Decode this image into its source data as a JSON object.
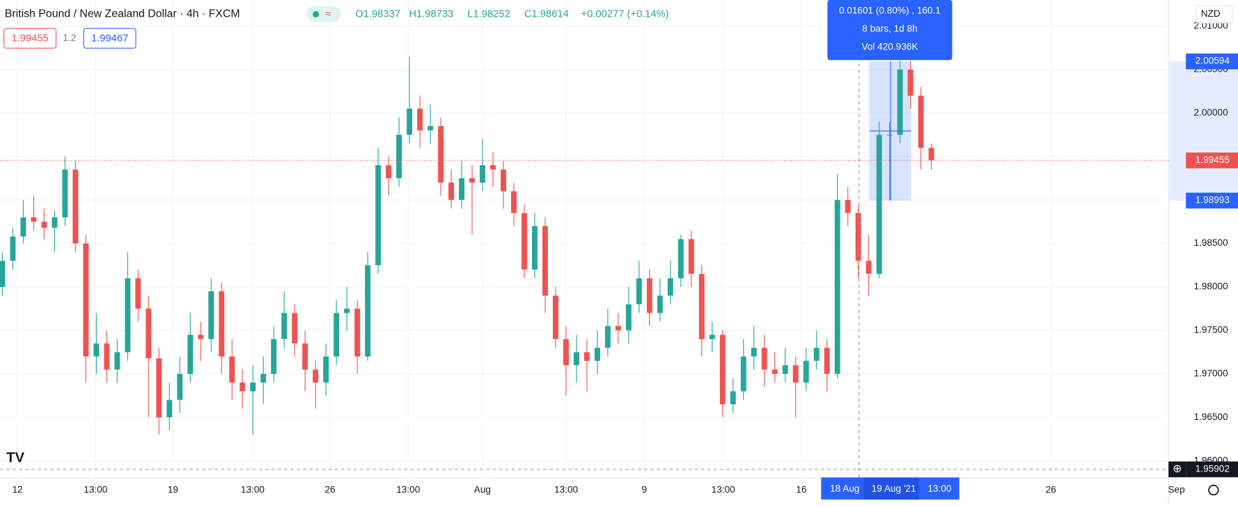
{
  "chart_data": {
    "type": "candlestick",
    "title": "British Pound / New Zealand Dollar · 4h · FXCM",
    "ohlc_header": [
      "O1.98337",
      "H1.98733",
      "L1.98252",
      "C1.98614",
      "+0.00277 (+0.14%)"
    ],
    "sell_price": "1.99455",
    "spread": "1.2",
    "buy_price": "1.99467",
    "currency": "NZD",
    "up_color": "#26a69a",
    "down_color": "#ef5350",
    "grid": true,
    "ylim": [
      1.958,
      2.013
    ],
    "yticks": [
      {
        "value": 1.96,
        "label": "1.96000"
      },
      {
        "value": 1.965,
        "label": "1.96500"
      },
      {
        "value": 1.97,
        "label": "1.97000"
      },
      {
        "value": 1.975,
        "label": "1.97500"
      },
      {
        "value": 1.98,
        "label": "1.98000"
      },
      {
        "value": 1.985,
        "label": "1.98500"
      },
      {
        "value": 1.99,
        "label": "1.99000"
      },
      {
        "value": 1.995,
        "label": "1.99500"
      },
      {
        "value": 2.0,
        "label": "2.00000"
      },
      {
        "value": 2.005,
        "label": "2.00500"
      },
      {
        "value": 2.01,
        "label": "2.01000"
      }
    ],
    "xlim": [
      -0.23,
      111.57
    ],
    "xticks": [
      {
        "value": 1.44,
        "label": "12"
      },
      {
        "value": 8.93,
        "label": "13:00"
      },
      {
        "value": 16.34,
        "label": "19"
      },
      {
        "value": 23.98,
        "label": "13:00"
      },
      {
        "value": 31.39,
        "label": "26"
      },
      {
        "value": 38.88,
        "label": "13:00"
      },
      {
        "value": 45.99,
        "label": "Aug"
      },
      {
        "value": 54.01,
        "label": "13:00"
      },
      {
        "value": 61.5,
        "label": "9"
      },
      {
        "value": 69.06,
        "label": "13:00"
      },
      {
        "value": 76.55,
        "label": "16"
      },
      {
        "value": 100.45,
        "label": "26"
      },
      {
        "value": 112.48,
        "label": "Sep"
      }
    ],
    "candles": [
      [
        1.98,
        1.984,
        1.979,
        1.983
      ],
      [
        1.983,
        1.9868,
        1.982,
        1.9858
      ],
      [
        1.9858,
        1.99,
        1.985,
        1.988
      ],
      [
        1.988,
        1.9905,
        1.9865,
        1.9875
      ],
      [
        1.9875,
        1.989,
        1.9855,
        1.9868
      ],
      [
        1.9868,
        1.9888,
        1.984,
        1.988
      ],
      [
        1.988,
        1.995,
        1.987,
        1.9935
      ],
      [
        1.9935,
        1.9945,
        1.984,
        1.985
      ],
      [
        1.985,
        1.986,
        1.969,
        1.972
      ],
      [
        1.972,
        1.977,
        1.97,
        1.9735
      ],
      [
        1.9735,
        1.975,
        1.969,
        1.9705
      ],
      [
        1.9705,
        1.974,
        1.969,
        1.9725
      ],
      [
        1.9725,
        1.984,
        1.9715,
        1.981
      ],
      [
        1.981,
        1.982,
        1.976,
        1.9775
      ],
      [
        1.9775,
        1.979,
        1.965,
        1.9718
      ],
      [
        1.9718,
        1.973,
        1.963,
        1.965
      ],
      [
        1.965,
        1.969,
        1.9635,
        1.967
      ],
      [
        1.967,
        1.972,
        1.9655,
        1.97
      ],
      [
        1.97,
        1.977,
        1.969,
        1.9745
      ],
      [
        1.9745,
        1.976,
        1.9715,
        1.974
      ],
      [
        1.974,
        1.981,
        1.9725,
        1.9795
      ],
      [
        1.9795,
        1.9805,
        1.97,
        1.972
      ],
      [
        1.972,
        1.974,
        1.967,
        1.969
      ],
      [
        1.969,
        1.9705,
        1.966,
        1.968
      ],
      [
        1.968,
        1.971,
        1.963,
        1.969
      ],
      [
        1.969,
        1.972,
        1.9665,
        1.97
      ],
      [
        1.97,
        1.9755,
        1.969,
        1.974
      ],
      [
        1.974,
        1.9795,
        1.973,
        1.977
      ],
      [
        1.977,
        1.978,
        1.972,
        1.9735
      ],
      [
        1.9735,
        1.975,
        1.968,
        1.9705
      ],
      [
        1.9705,
        1.9715,
        1.966,
        1.969
      ],
      [
        1.969,
        1.9735,
        1.9675,
        1.972
      ],
      [
        1.972,
        1.9785,
        1.971,
        1.977
      ],
      [
        1.977,
        1.98,
        1.975,
        1.9775
      ],
      [
        1.9775,
        1.9785,
        1.97,
        1.972
      ],
      [
        1.972,
        1.984,
        1.9715,
        1.9825
      ],
      [
        1.9825,
        1.996,
        1.9815,
        1.994
      ],
      [
        1.994,
        1.995,
        1.9905,
        1.9925
      ],
      [
        1.9925,
        1.9995,
        1.9915,
        1.9975
      ],
      [
        1.9975,
        2.0065,
        1.9965,
        2.0005
      ],
      [
        2.0005,
        2.002,
        1.996,
        1.998
      ],
      [
        1.998,
        2.001,
        1.9965,
        1.9985
      ],
      [
        1.9985,
        1.9995,
        1.9905,
        1.992
      ],
      [
        1.992,
        1.9935,
        1.989,
        1.99
      ],
      [
        1.99,
        1.9945,
        1.989,
        1.9925
      ],
      [
        1.9925,
        1.994,
        1.986,
        1.992
      ],
      [
        1.992,
        1.997,
        1.991,
        1.994
      ],
      [
        1.994,
        1.9955,
        1.9915,
        1.9935
      ],
      [
        1.9935,
        1.9945,
        1.989,
        1.991
      ],
      [
        1.991,
        1.992,
        1.987,
        1.9885
      ],
      [
        1.9885,
        1.9895,
        1.981,
        1.982
      ],
      [
        1.982,
        1.9885,
        1.981,
        1.987
      ],
      [
        1.987,
        1.988,
        1.977,
        1.979
      ],
      [
        1.979,
        1.98,
        1.973,
        1.974
      ],
      [
        1.974,
        1.9755,
        1.9675,
        1.971
      ],
      [
        1.971,
        1.9745,
        1.969,
        1.9725
      ],
      [
        1.9725,
        1.974,
        1.968,
        1.9715
      ],
      [
        1.9715,
        1.975,
        1.97,
        1.973
      ],
      [
        1.973,
        1.9775,
        1.972,
        1.9755
      ],
      [
        1.9755,
        1.977,
        1.9735,
        1.975
      ],
      [
        1.975,
        1.98,
        1.9735,
        1.978
      ],
      [
        1.978,
        1.983,
        1.977,
        1.981
      ],
      [
        1.981,
        1.982,
        1.9755,
        1.977
      ],
      [
        1.977,
        1.981,
        1.976,
        1.979
      ],
      [
        1.979,
        1.983,
        1.978,
        1.981
      ],
      [
        1.981,
        1.986,
        1.98,
        1.9855
      ],
      [
        1.9855,
        1.9865,
        1.98,
        1.9815
      ],
      [
        1.9815,
        1.9825,
        1.972,
        1.974
      ],
      [
        1.974,
        1.976,
        1.9725,
        1.9745
      ],
      [
        1.9745,
        1.975,
        1.965,
        1.9665
      ],
      [
        1.9665,
        1.9695,
        1.9655,
        1.968
      ],
      [
        1.968,
        1.974,
        1.967,
        1.972
      ],
      [
        1.972,
        1.9755,
        1.9705,
        1.973
      ],
      [
        1.973,
        1.9745,
        1.9685,
        1.9705
      ],
      [
        1.9705,
        1.9725,
        1.969,
        1.97
      ],
      [
        1.97,
        1.973,
        1.969,
        1.971
      ],
      [
        1.971,
        1.972,
        1.965,
        1.969
      ],
      [
        1.969,
        1.973,
        1.968,
        1.9715
      ],
      [
        1.9715,
        1.975,
        1.9705,
        1.973
      ],
      [
        1.973,
        1.974,
        1.968,
        1.97
      ],
      [
        1.97,
        1.993,
        1.9695,
        1.99
      ],
      [
        1.99,
        1.9915,
        1.987,
        1.9885
      ],
      [
        1.9885,
        1.9895,
        1.981,
        1.983
      ],
      [
        1.983,
        1.986,
        1.979,
        1.9815
      ],
      [
        1.9815,
        1.999,
        1.981,
        1.9975
      ],
      [
        1.9975,
        1.999,
        1.99,
        1.9975
      ],
      [
        1.9975,
        2.006,
        1.9965,
        2.005
      ],
      [
        2.005,
        2.006,
        2.0005,
        2.002
      ],
      [
        2.002,
        2.003,
        1.9935,
        1.996
      ],
      [
        1.996,
        1.9965,
        1.9935,
        1.99455
      ]
    ],
    "last_price": 1.99455,
    "measure": {
      "high": 2.00594,
      "low": 1.98993,
      "lines": [
        "0.01601 (0.80%) , 160.1",
        "8 bars, 1d 8h",
        "Vol 420.936K"
      ]
    },
    "crosshair_price": 1.95902,
    "time_labels": [
      "18 Aug",
      "19 Aug '21",
      "13:00"
    ]
  }
}
